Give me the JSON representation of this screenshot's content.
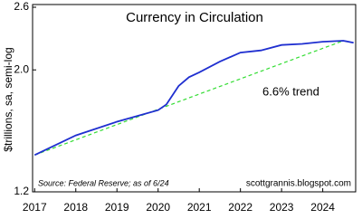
{
  "chart_data": {
    "type": "line",
    "title": "Currency in Circulation",
    "y_label": "$trillions, sa, semi-log",
    "source": "Source: Federal Reserve; as of 6/24",
    "watermark": "scottgrannis.blogspot.com",
    "y_scale": "log",
    "x": [
      2017.0,
      2018.0,
      2019.0,
      2020.0,
      2020.2,
      2020.5,
      2020.75,
      2021.0,
      2021.5,
      2022.0,
      2022.5,
      2023.0,
      2023.5,
      2024.0,
      2024.5,
      2024.75
    ],
    "series": [
      {
        "color": "#1f2fd0",
        "values": [
          1.4,
          1.52,
          1.61,
          1.69,
          1.73,
          1.87,
          1.94,
          1.98,
          2.07,
          2.15,
          2.17,
          2.22,
          2.23,
          2.25,
          2.26,
          2.24
        ]
      }
    ],
    "trend": {
      "label": "6.6% trend",
      "color": "#33dd33",
      "x": [
        2017.0,
        2024.5
      ],
      "values": [
        1.4,
        2.26
      ]
    },
    "xlim": [
      2016.95,
      2024.8
    ],
    "xticks": [
      2017,
      2018,
      2019,
      2020,
      2021,
      2022,
      2023,
      2024
    ],
    "ylim": [
      1.2,
      2.6
    ],
    "yticks": [
      1.2,
      {
        "value": 2,
        "label": "2.0"
      },
      2.6
    ]
  }
}
